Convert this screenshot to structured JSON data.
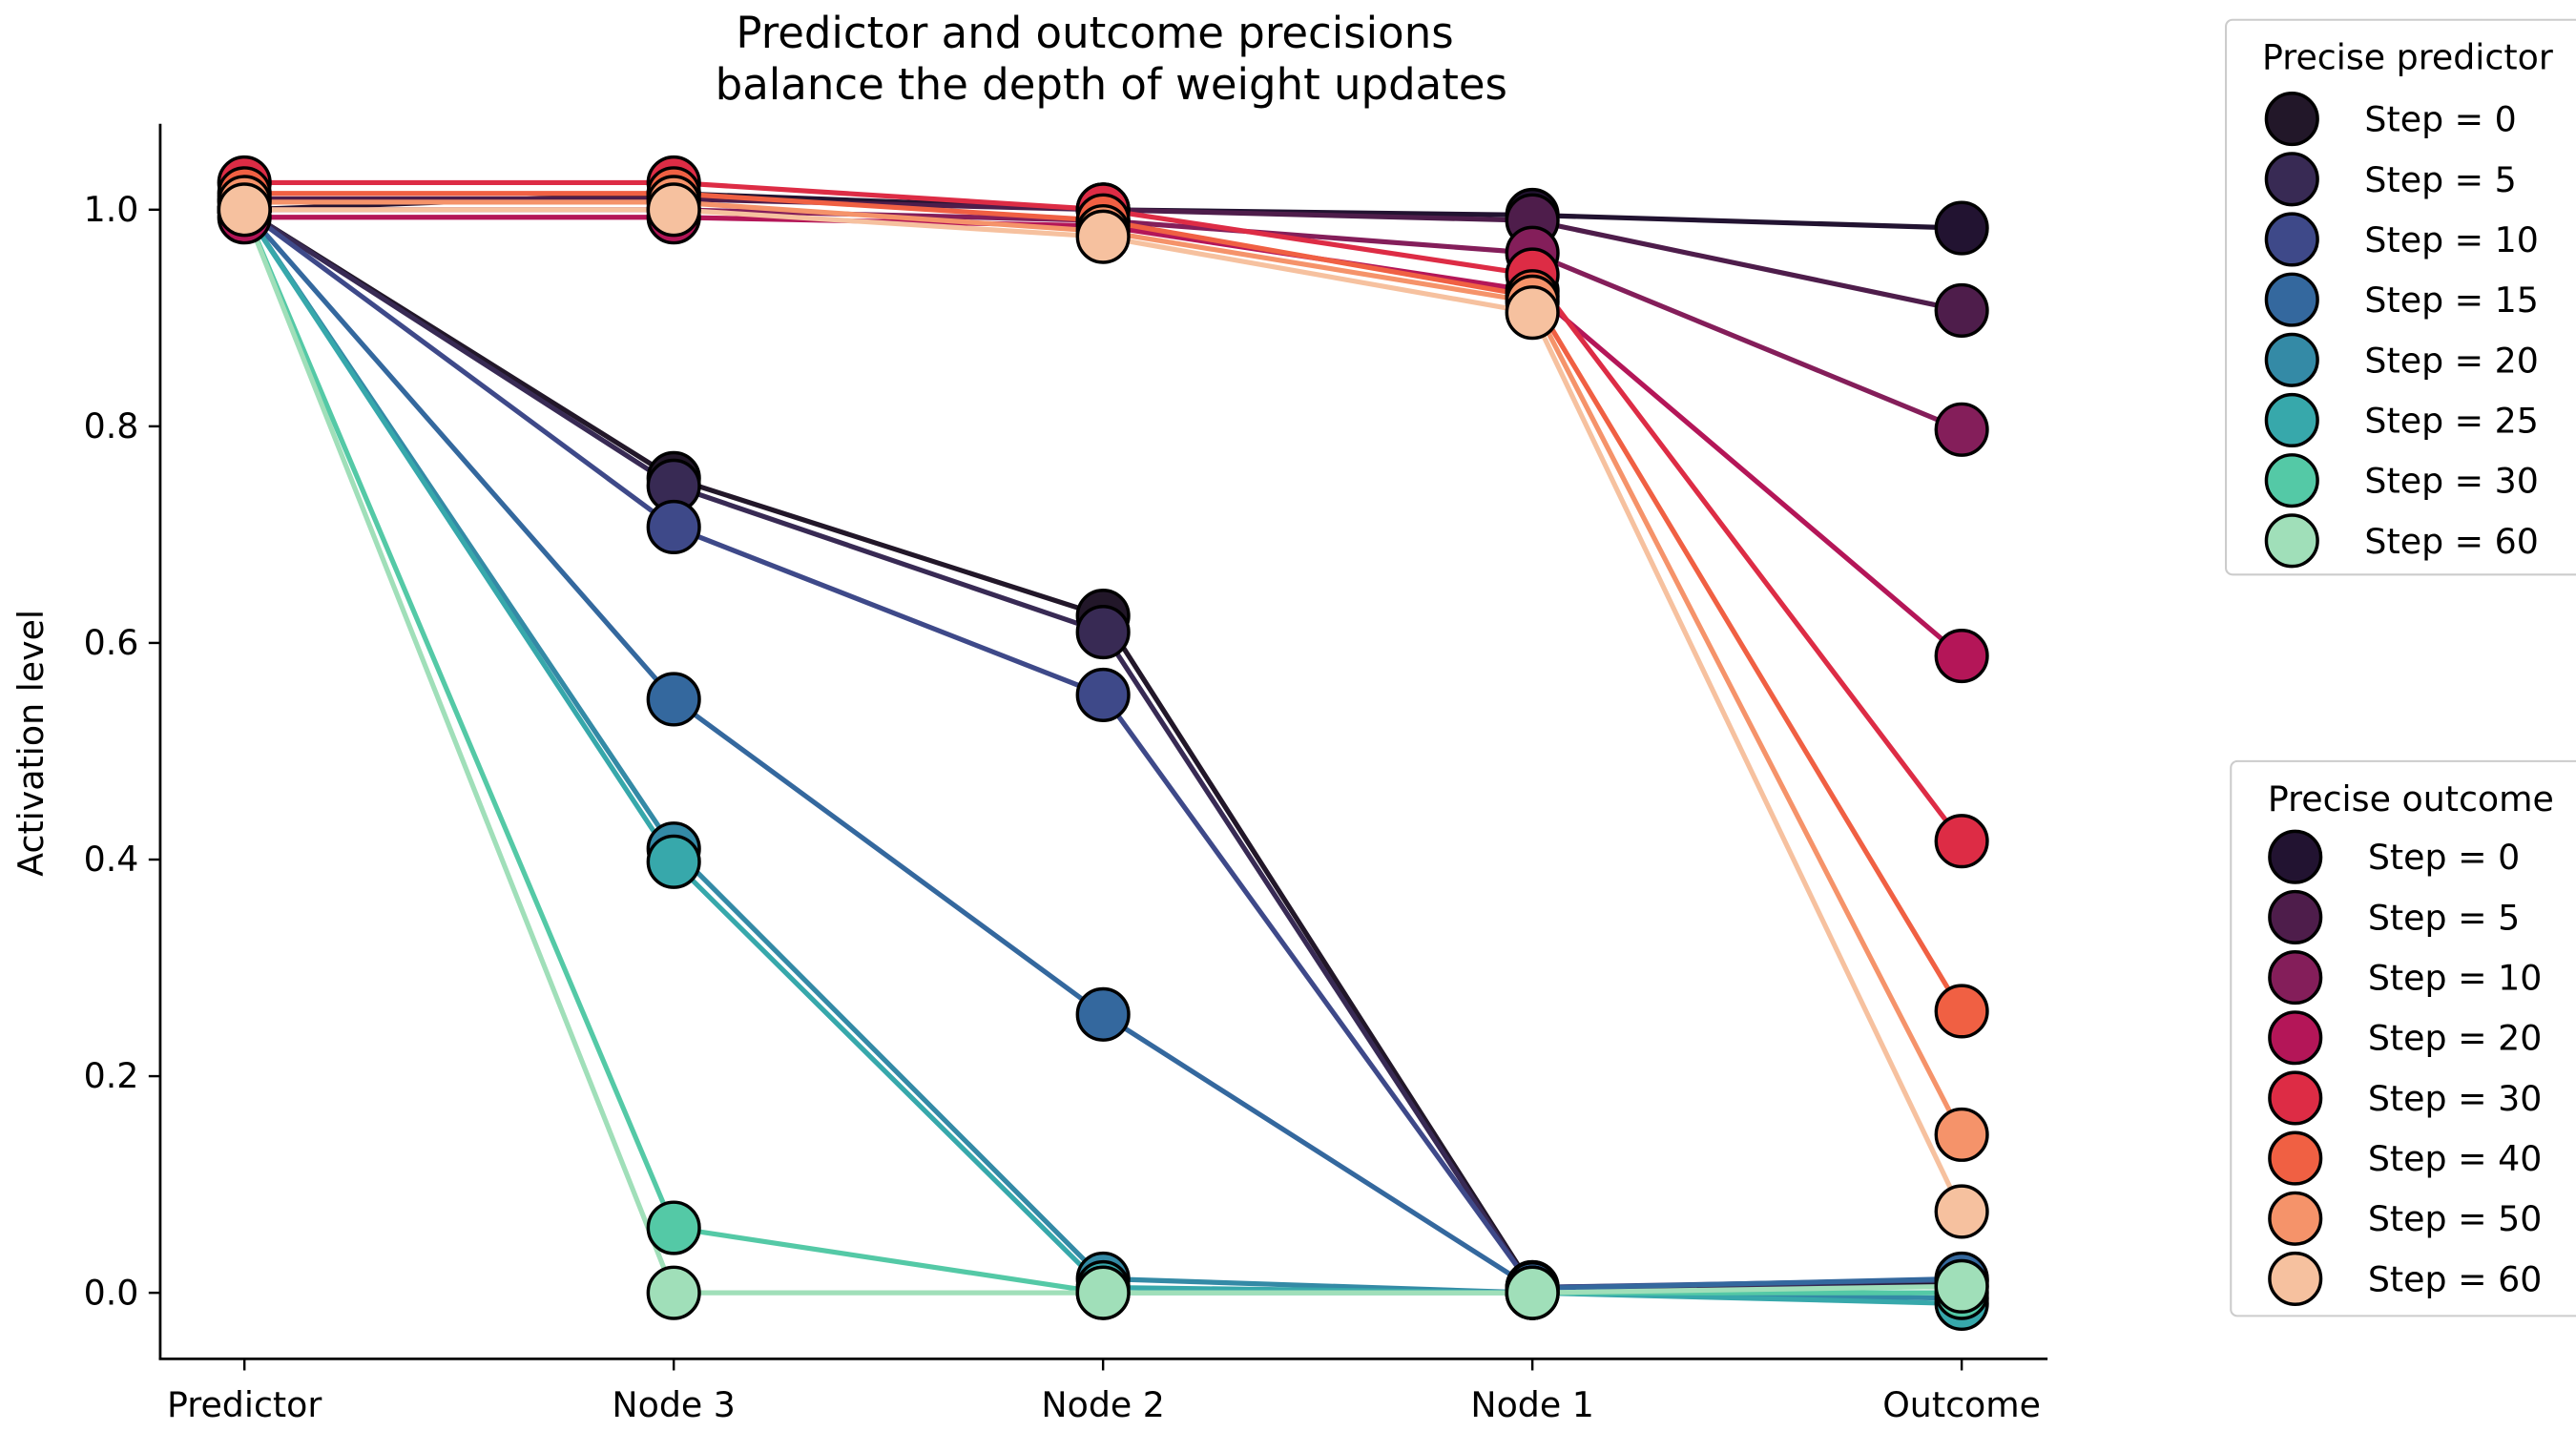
{
  "chart_data": {
    "type": "line",
    "title": [
      "Predictor and outcome precisions",
      "balance the depth of weight updates"
    ],
    "xlabel": "",
    "ylabel": "Activation level",
    "categories": [
      "Predictor",
      "Node 3",
      "Node 2",
      "Node 1",
      "Outcome"
    ],
    "ylim": [
      -0.06,
      1.075
    ],
    "yticks": [
      0.0,
      0.2,
      0.4,
      0.6,
      0.8,
      1.0
    ],
    "ytick_labels": [
      "0.0",
      "0.2",
      "0.4",
      "0.6",
      "0.8",
      "1.0"
    ],
    "grid": false,
    "groups": [
      {
        "legend_title": "Precise predictor",
        "legend_placement": "upper-right-outside",
        "series": [
          {
            "name": "Step = 0",
            "color": "#221729",
            "values": [
              1.0,
              0.752,
              0.625,
              0.005,
              0.01
            ]
          },
          {
            "name": "Step = 5",
            "color": "#382a54",
            "values": [
              1.0,
              0.745,
              0.61,
              0.003,
              0.006
            ]
          },
          {
            "name": "Step = 10",
            "color": "#3e4989",
            "values": [
              1.0,
              0.707,
              0.552,
              0.005,
              0.012
            ]
          },
          {
            "name": "Step = 15",
            "color": "#34689e",
            "values": [
              1.0,
              0.548,
              0.257,
              0.004,
              0.013
            ]
          },
          {
            "name": "Step = 20",
            "color": "#348aa6",
            "values": [
              1.0,
              0.41,
              0.013,
              0.0,
              -0.005
            ]
          },
          {
            "name": "Step = 25",
            "color": "#37a8ab",
            "values": [
              1.0,
              0.398,
              0.005,
              0.0,
              -0.01
            ]
          },
          {
            "name": "Step = 30",
            "color": "#54c9a6",
            "values": [
              1.0,
              0.06,
              0.0,
              0.0,
              0.0
            ]
          },
          {
            "name": "Step = 60",
            "color": "#a0dfb9",
            "values": [
              1.0,
              0.0,
              0.0,
              0.0,
              0.006
            ]
          }
        ]
      },
      {
        "legend_title": "Precise outcome",
        "legend_placement": "lower-right-outside",
        "series": [
          {
            "name": "Step = 0",
            "color": "#221331",
            "values": [
              1.0,
              1.015,
              1.0,
              0.995,
              0.983
            ]
          },
          {
            "name": "Step = 5",
            "color": "#4e1d4b",
            "values": [
              1.01,
              1.01,
              1.0,
              0.99,
              0.907
            ]
          },
          {
            "name": "Step = 10",
            "color": "#841e5a",
            "values": [
              1.0,
              1.0,
              0.99,
              0.96,
              0.797
            ]
          },
          {
            "name": "Step = 20",
            "color": "#b41658",
            "values": [
              0.993,
              0.993,
              0.985,
              0.925,
              0.588
            ]
          },
          {
            "name": "Step = 30",
            "color": "#dd2c45",
            "values": [
              1.025,
              1.025,
              1.0,
              0.94,
              0.417
            ]
          },
          {
            "name": "Step = 40",
            "color": "#f06043",
            "values": [
              1.015,
              1.015,
              0.99,
              0.92,
              0.26
            ]
          },
          {
            "name": "Step = 50",
            "color": "#f5936a",
            "values": [
              1.007,
              1.007,
              0.98,
              0.915,
              0.146
            ]
          },
          {
            "name": "Step = 60",
            "color": "#f6c19f",
            "values": [
              1.0,
              1.0,
              0.975,
              0.905,
              0.075
            ]
          }
        ]
      }
    ]
  }
}
